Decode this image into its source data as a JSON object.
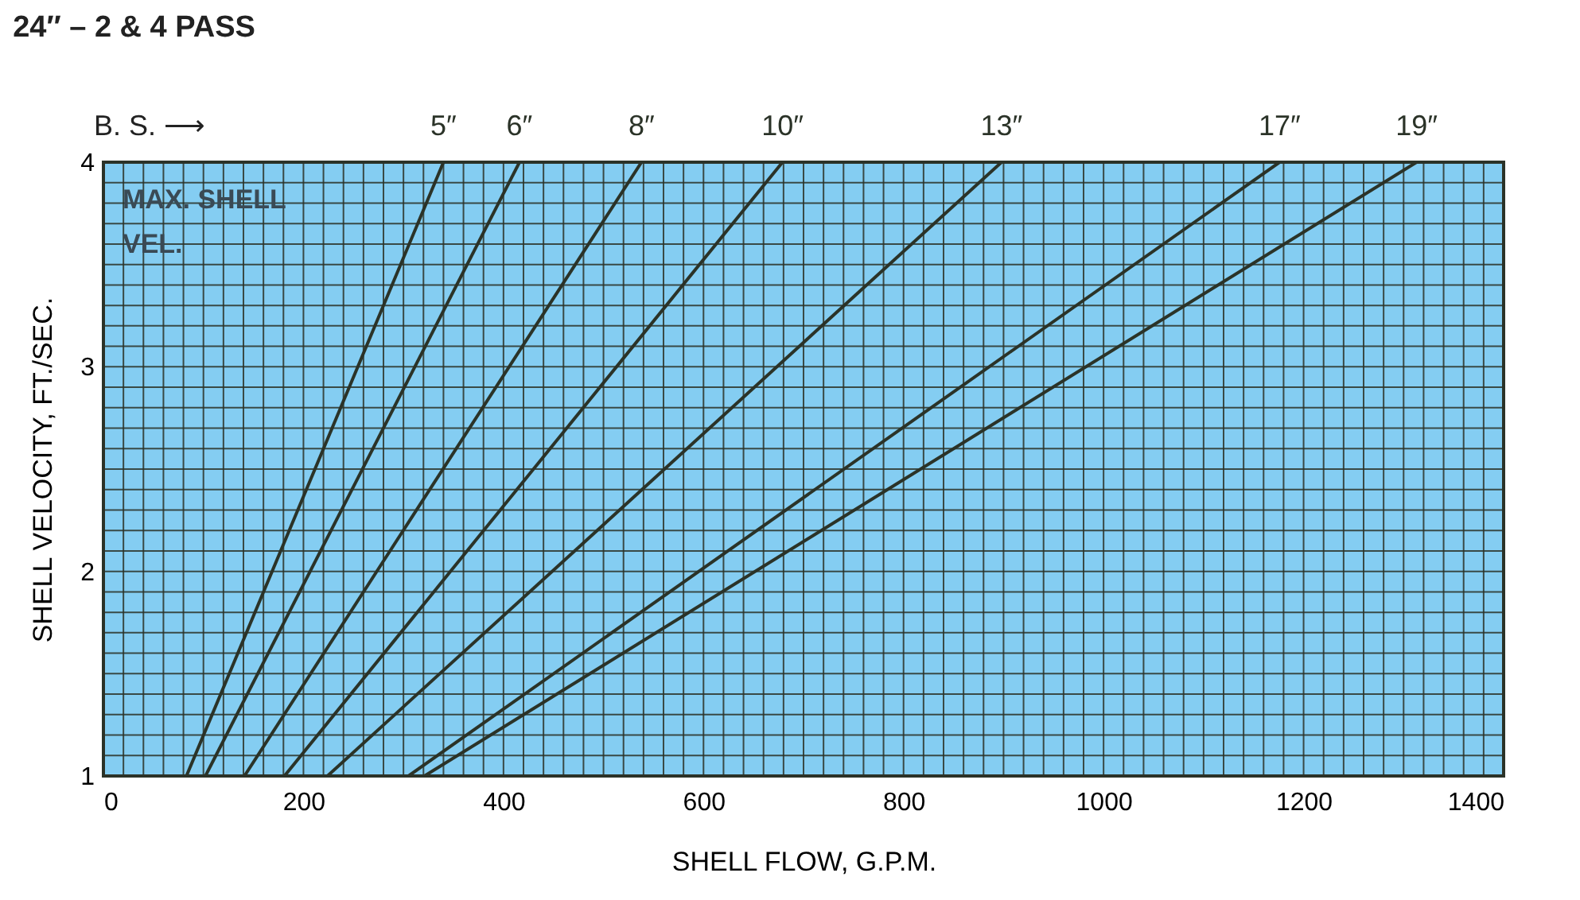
{
  "chart_data": {
    "type": "line",
    "title": "24″ – 2 & 4 PASS",
    "xlabel": "SHELL FLOW, G.P.M.",
    "ylabel": "SHELL VELOCITY, FT./SEC.",
    "annotations": [
      "B. S. ⟶",
      "MAX. SHELL",
      "VEL."
    ],
    "series": [
      {
        "name": "5″",
        "color": "#2b3328",
        "x": [
          83,
          340
        ],
        "values": [
          1,
          4
        ]
      },
      {
        "name": "6″",
        "color": "#2b3328",
        "x": [
          102,
          416
        ],
        "values": [
          1,
          4
        ]
      },
      {
        "name": "8″",
        "color": "#2b3328",
        "x": [
          141,
          538
        ],
        "values": [
          1,
          4
        ]
      },
      {
        "name": "10″",
        "color": "#2b3328",
        "x": [
          181,
          679
        ],
        "values": [
          1,
          4
        ]
      },
      {
        "name": "13″",
        "color": "#2b3328",
        "x": [
          224,
          898
        ],
        "values": [
          1,
          4
        ]
      },
      {
        "name": "17″",
        "color": "#2b3328",
        "x": [
          305,
          1176
        ],
        "values": [
          1,
          4
        ]
      },
      {
        "name": "19″",
        "color": "#2b3328",
        "x": [
          321,
          1313
        ],
        "values": [
          1,
          4
        ]
      }
    ],
    "xlim": [
      0,
      1400
    ],
    "ylim": [
      1,
      4
    ],
    "xticks": [
      0,
      {
        "value": 20,
        "label": null
      },
      {
        "value": 40,
        "label": null
      },
      {
        "value": 60,
        "label": null
      },
      {
        "value": 80,
        "label": null
      },
      {
        "value": 100,
        "label": null
      },
      {
        "value": 120,
        "label": null
      },
      {
        "value": 140,
        "label": null
      },
      {
        "value": 160,
        "label": null
      },
      {
        "value": 180,
        "label": null
      },
      200,
      {
        "value": 220,
        "label": null
      },
      {
        "value": 240,
        "label": null
      },
      {
        "value": 260,
        "label": null
      },
      {
        "value": 280,
        "label": null
      },
      {
        "value": 300,
        "label": null
      },
      {
        "value": 320,
        "label": null
      },
      {
        "value": 340,
        "label": null
      },
      {
        "value": 360,
        "label": null
      },
      {
        "value": 380,
        "label": null
      },
      400,
      {
        "value": 420,
        "label": null
      },
      {
        "value": 440,
        "label": null
      },
      {
        "value": 460,
        "label": null
      },
      {
        "value": 480,
        "label": null
      },
      {
        "value": 500,
        "label": null
      },
      {
        "value": 520,
        "label": null
      },
      {
        "value": 540,
        "label": null
      },
      {
        "value": 560,
        "label": null
      },
      {
        "value": 580,
        "label": null
      },
      600,
      {
        "value": 620,
        "label": null
      },
      {
        "value": 640,
        "label": null
      },
      {
        "value": 660,
        "label": null
      },
      {
        "value": 680,
        "label": null
      },
      {
        "value": 700,
        "label": null
      },
      {
        "value": 720,
        "label": null
      },
      {
        "value": 740,
        "label": null
      },
      {
        "value": 760,
        "label": null
      },
      {
        "value": 780,
        "label": null
      },
      800,
      {
        "value": 820,
        "label": null
      },
      {
        "value": 840,
        "label": null
      },
      {
        "value": 860,
        "label": null
      },
      {
        "value": 880,
        "label": null
      },
      {
        "value": 900,
        "label": null
      },
      {
        "value": 920,
        "label": null
      },
      {
        "value": 940,
        "label": null
      },
      {
        "value": 960,
        "label": null
      },
      {
        "value": 980,
        "label": null
      },
      1000,
      {
        "value": 1020,
        "label": null
      },
      {
        "value": 1040,
        "label": null
      },
      {
        "value": 1060,
        "label": null
      },
      {
        "value": 1080,
        "label": null
      },
      {
        "value": 1100,
        "label": null
      },
      {
        "value": 1120,
        "label": null
      },
      {
        "value": 1140,
        "label": null
      },
      {
        "value": 1160,
        "label": null
      },
      {
        "value": 1180,
        "label": null
      },
      1200,
      {
        "value": 1220,
        "label": null
      },
      {
        "value": 1240,
        "label": null
      },
      {
        "value": 1260,
        "label": null
      },
      {
        "value": 1280,
        "label": null
      },
      {
        "value": 1300,
        "label": null
      },
      {
        "value": 1320,
        "label": null
      },
      {
        "value": 1340,
        "label": null
      },
      {
        "value": 1360,
        "label": null
      },
      {
        "value": 1380,
        "label": null
      },
      1400
    ],
    "yticks": [
      1,
      {
        "value": 1.1,
        "label": null
      },
      {
        "value": 1.2,
        "label": null
      },
      {
        "value": 1.3,
        "label": null
      },
      {
        "value": 1.4,
        "label": null
      },
      {
        "value": 1.5,
        "label": null
      },
      {
        "value": 1.6,
        "label": null
      },
      {
        "value": 1.7,
        "label": null
      },
      {
        "value": 1.8,
        "label": null
      },
      {
        "value": 1.9,
        "label": null
      },
      2,
      {
        "value": 2.1,
        "label": null
      },
      {
        "value": 2.2,
        "label": null
      },
      {
        "value": 2.3,
        "label": null
      },
      {
        "value": 2.4,
        "label": null
      },
      {
        "value": 2.5,
        "label": null
      },
      {
        "value": 2.6,
        "label": null
      },
      {
        "value": 2.7,
        "label": null
      },
      {
        "value": 2.8,
        "label": null
      },
      {
        "value": 2.9,
        "label": null
      },
      3,
      {
        "value": 3.1,
        "label": null
      },
      {
        "value": 3.2,
        "label": null
      },
      {
        "value": 3.3,
        "label": null
      },
      {
        "value": 3.4,
        "label": null
      },
      {
        "value": 3.5,
        "label": null
      },
      {
        "value": 3.6,
        "label": null
      },
      {
        "value": 3.7,
        "label": null
      },
      {
        "value": 3.8,
        "label": null
      },
      {
        "value": 3.9,
        "label": null
      },
      4
    ],
    "grid": true,
    "legend": false,
    "marker": "none",
    "line_style": "solid"
  }
}
